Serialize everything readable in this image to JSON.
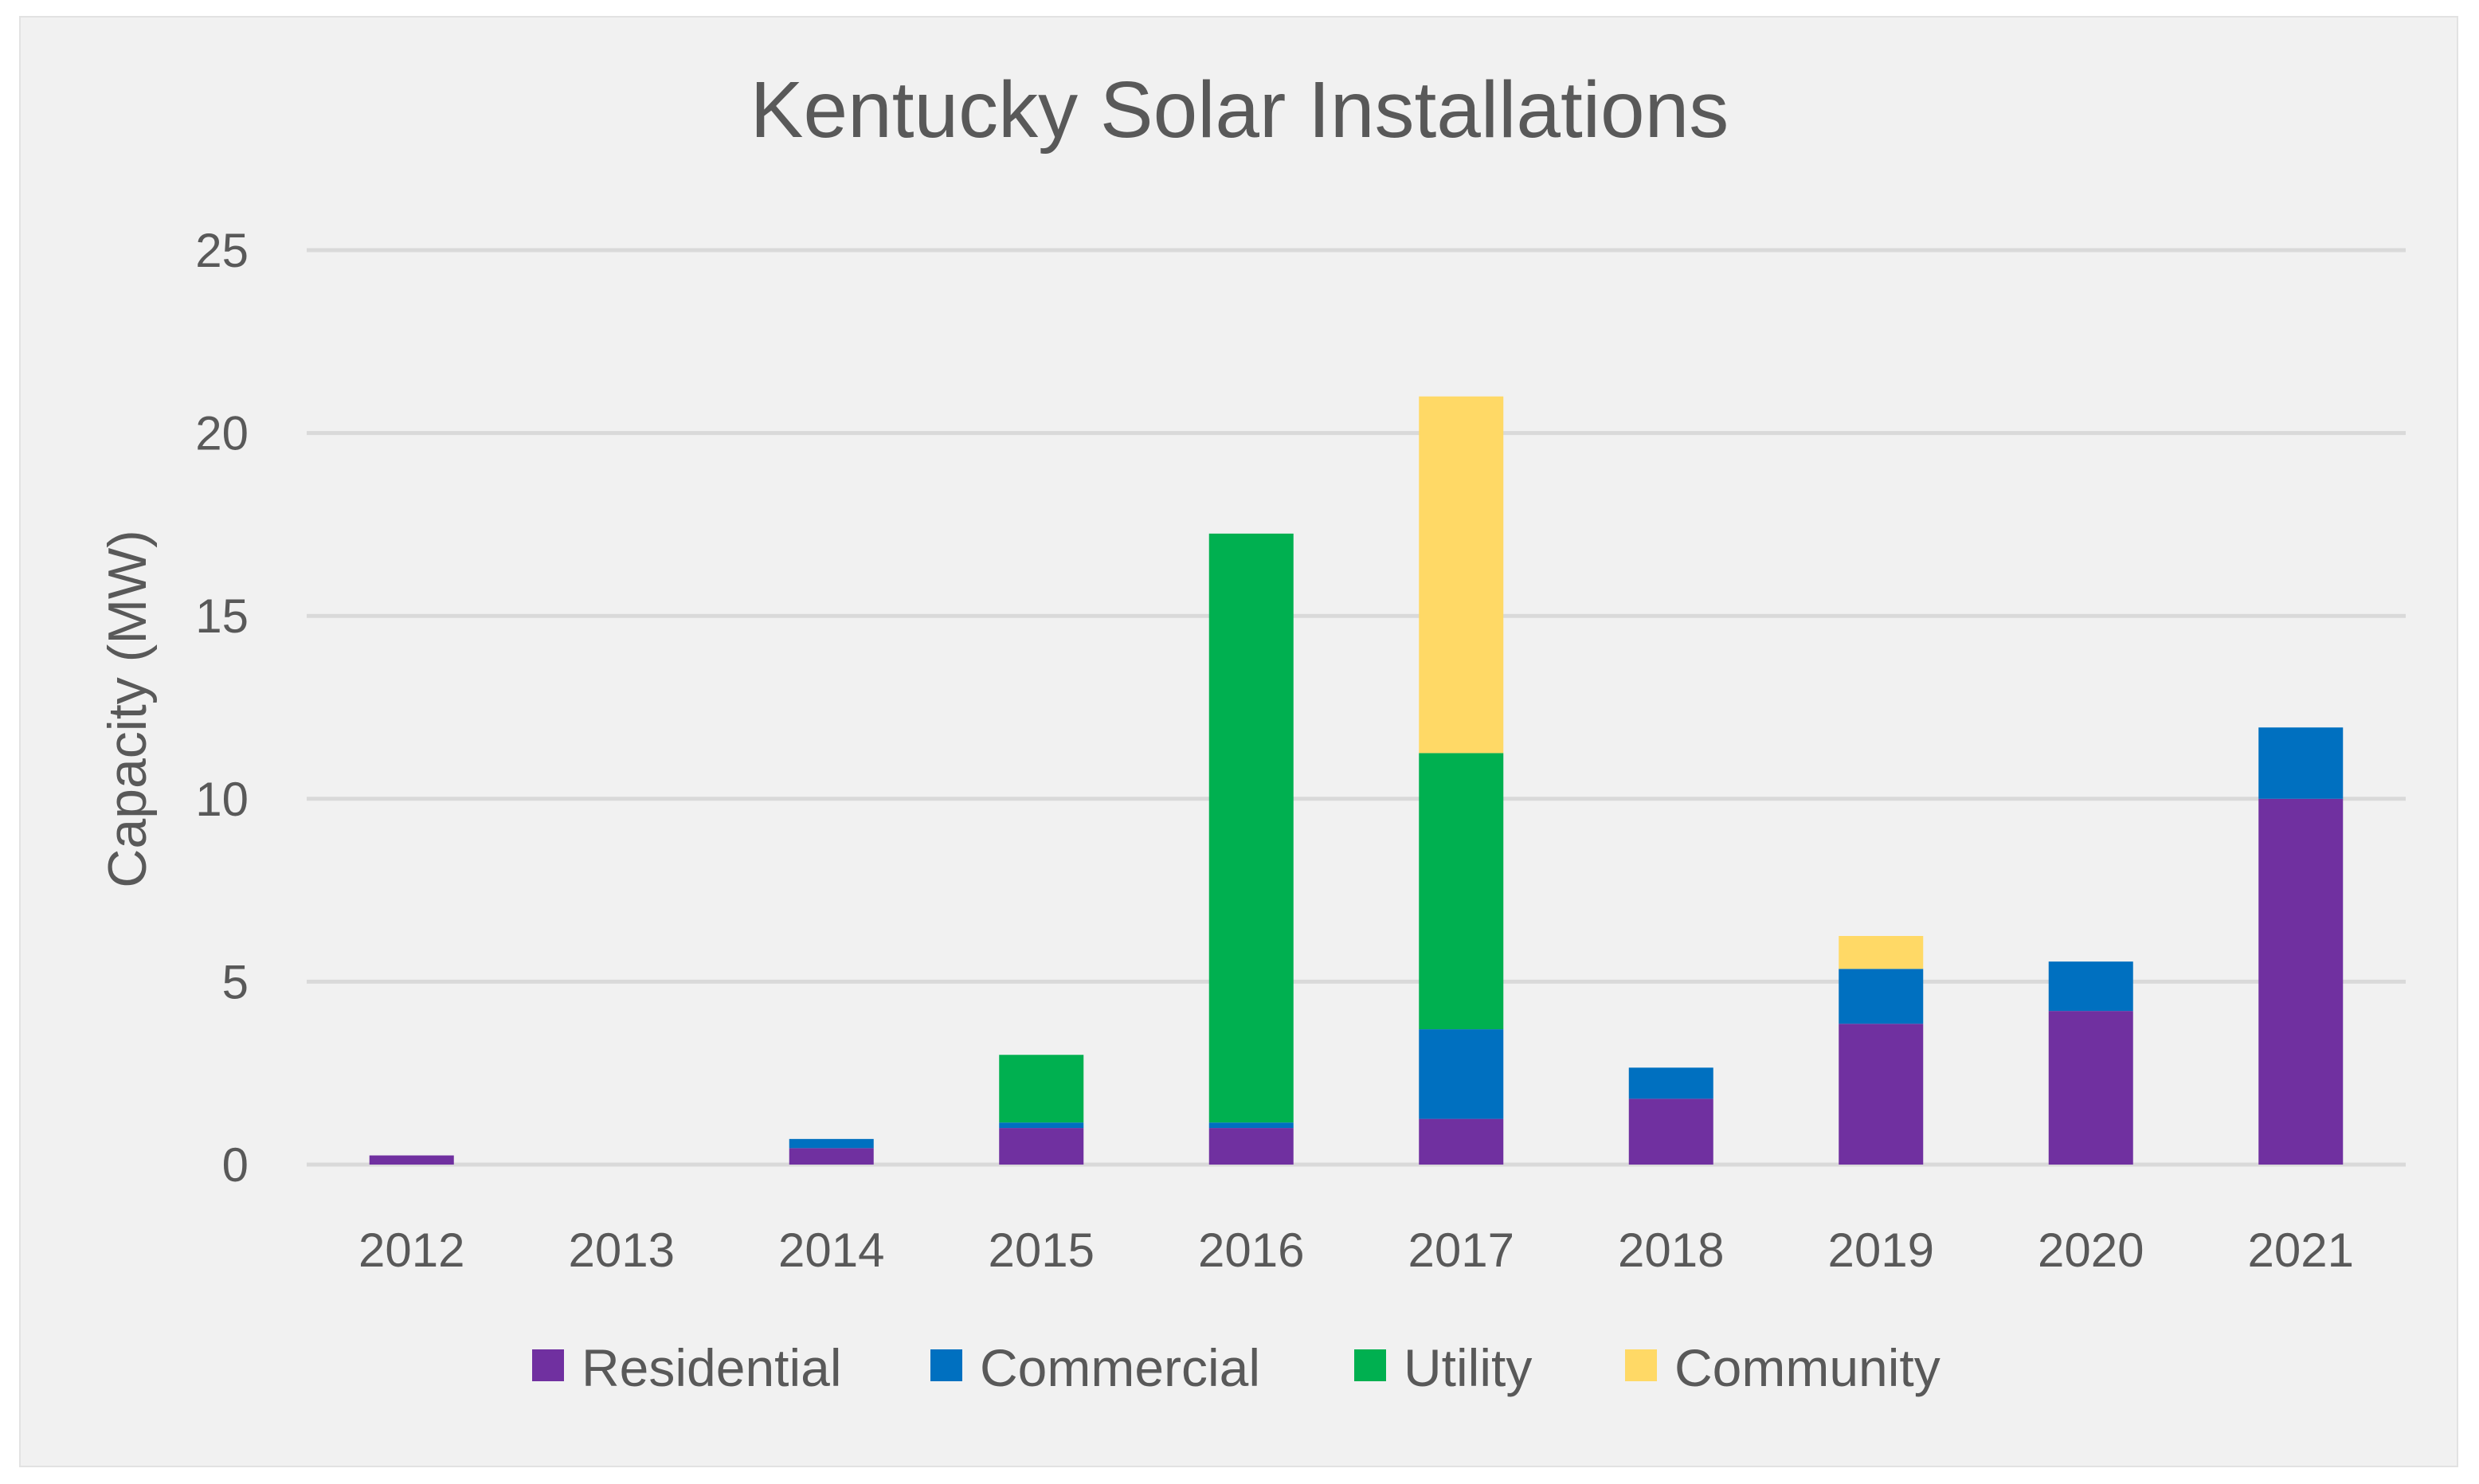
{
  "chart_data": {
    "type": "bar",
    "stacked": true,
    "title": "Kentucky Solar Installations",
    "xlabel": "",
    "ylabel": "Capacity (MW)",
    "ylim": [
      0,
      25
    ],
    "yticks": [
      "0",
      "5",
      "10",
      "15",
      "20",
      "25"
    ],
    "categories": [
      "2012",
      "2013",
      "2014",
      "2015",
      "2016",
      "2017",
      "2018",
      "2019",
      "2020",
      "2021"
    ],
    "series": [
      {
        "name": "Residential",
        "color": "#7030a0",
        "values": [
          0.25,
          0,
          0.45,
          1.0,
          1.0,
          1.25,
          1.8,
          3.85,
          4.2,
          10.0
        ]
      },
      {
        "name": "Commercial",
        "color": "#0070c0",
        "values": [
          0,
          0,
          0.25,
          0.15,
          0.15,
          2.45,
          0.85,
          1.5,
          1.35,
          1.95
        ]
      },
      {
        "name": "Utility",
        "color": "#00b050",
        "values": [
          0,
          0,
          0,
          1.85,
          16.1,
          7.55,
          0,
          0,
          0,
          0
        ]
      },
      {
        "name": "Community",
        "color": "#ffd966",
        "values": [
          0,
          0,
          0,
          0,
          0,
          9.75,
          0,
          0.9,
          0,
          0
        ]
      }
    ],
    "grid": true,
    "legend_position": "bottom"
  }
}
